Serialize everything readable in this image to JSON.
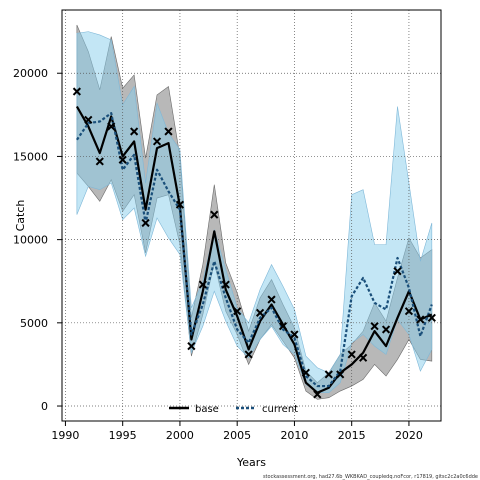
{
  "chart_data": {
    "type": "line",
    "xlabel": "Years",
    "ylabel": "Catch",
    "xlim": [
      1989.7,
      2022.8
    ],
    "ylim": [
      -900,
      23800
    ],
    "xticks": [
      1990,
      1995,
      2000,
      2005,
      2010,
      2015,
      2020
    ],
    "yticks": [
      0,
      5000,
      10000,
      15000,
      20000
    ],
    "grid": true,
    "legend_position": "bottom-center",
    "footnote": "stockassessment.org, had27.6b_WKBKAD_coupledq.noFcor, r17819, gitsc2c2a0c6dde",
    "x": [
      1991,
      1992,
      1993,
      1994,
      1995,
      1996,
      1997,
      1998,
      1999,
      2000,
      2001,
      2002,
      2003,
      2004,
      2005,
      2006,
      2007,
      2008,
      2009,
      2010,
      2011,
      2012,
      2013,
      2014,
      2015,
      2016,
      2017,
      2018,
      2019,
      2020,
      2021,
      2022
    ],
    "series": [
      {
        "name": "base",
        "color": "#000000",
        "band_color": "#8c8c8c",
        "values": [
          18000,
          16800,
          15200,
          17400,
          15000,
          15900,
          11800,
          15500,
          15800,
          12000,
          4000,
          6900,
          10500,
          7000,
          5400,
          3400,
          5100,
          6100,
          4900,
          3700,
          1400,
          800,
          1100,
          2000,
          2500,
          3200,
          4500,
          3600,
          5300,
          6900,
          5200,
          5500
        ],
        "lower": [
          14000,
          13200,
          12300,
          13600,
          11700,
          12700,
          9200,
          12500,
          12700,
          9700,
          3000,
          5500,
          8600,
          5700,
          4300,
          2500,
          4000,
          4900,
          3900,
          2900,
          900,
          400,
          500,
          900,
          1200,
          1600,
          2500,
          1800,
          2800,
          4000,
          2800,
          2700
        ],
        "upper": [
          22900,
          21300,
          19000,
          22200,
          19100,
          19900,
          14900,
          18700,
          19200,
          15000,
          5300,
          8500,
          13300,
          8600,
          6800,
          4500,
          6500,
          7600,
          6100,
          4700,
          2100,
          1400,
          2000,
          3100,
          3700,
          4500,
          6200,
          5100,
          7700,
          10100,
          8900,
          9400
        ]
      },
      {
        "name": "current",
        "color": "#1a4f7a",
        "band_color": "#87ceeb",
        "values": [
          16000,
          17000,
          17100,
          17600,
          14200,
          15100,
          11000,
          14200,
          12900,
          11800,
          4300,
          6100,
          8700,
          6500,
          4600,
          3800,
          5300,
          5900,
          4600,
          4100,
          1800,
          1200,
          1200,
          2100,
          6600,
          7700,
          6200,
          5800,
          8900,
          7100,
          4200,
          6100
        ],
        "lower": [
          11500,
          13200,
          13000,
          13400,
          11200,
          11900,
          9000,
          11300,
          10100,
          9100,
          3200,
          4800,
          6900,
          5100,
          3600,
          2900,
          4000,
          4800,
          3700,
          3100,
          1300,
          800,
          800,
          1400,
          3800,
          4300,
          3600,
          3100,
          5200,
          4300,
          2100,
          3400
        ],
        "upper": [
          22400,
          22500,
          22300,
          22000,
          18100,
          19200,
          13400,
          18200,
          16400,
          15400,
          5900,
          7500,
          10600,
          8200,
          5900,
          5000,
          7000,
          8500,
          7200,
          5800,
          3000,
          2300,
          2000,
          3100,
          12700,
          13000,
          9700,
          9700,
          18000,
          13400,
          8700,
          11000
        ]
      }
    ],
    "observations": {
      "marker": "x",
      "x": [
        1991,
        1992,
        1993,
        1994,
        1995,
        1996,
        1997,
        1998,
        1999,
        2000,
        2001,
        2002,
        2003,
        2004,
        2005,
        2006,
        2007,
        2008,
        2009,
        2010,
        2011,
        2012,
        2013,
        2014,
        2015,
        2016,
        2017,
        2018,
        2019,
        2020,
        2021,
        2022
      ],
      "values": [
        18900,
        17200,
        14700,
        16800,
        14800,
        16500,
        11000,
        15900,
        16500,
        12100,
        3600,
        7300,
        11500,
        7300,
        5700,
        3100,
        5600,
        6400,
        4800,
        4300,
        2000,
        700,
        1900,
        1900,
        3100,
        2900,
        4800,
        4600,
        8100,
        5700,
        5200,
        5300
      ]
    }
  }
}
